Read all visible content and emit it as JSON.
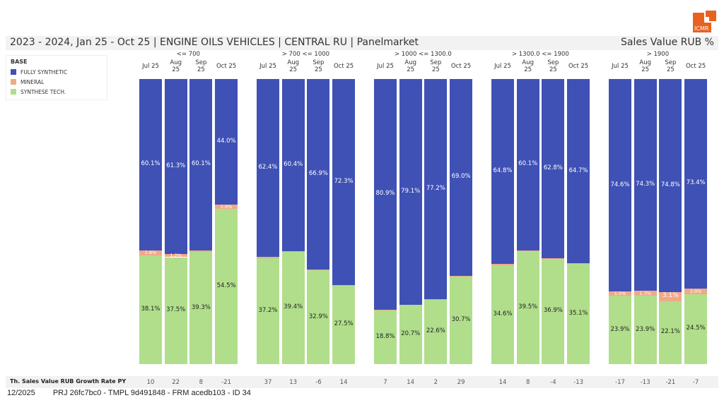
{
  "header": {
    "title": "2023 - 2024, Jan 25 - Oct 25 | ENGINE OILS VEHICLES | CENTRAL RU | Panelmarket",
    "measure": "Sales Value RUB %",
    "logo_text": "ICMR"
  },
  "colors": {
    "fully_synthetic": "#3f51b5",
    "mineral": "#f0a988",
    "synthese_tech": "#b0de8b",
    "logo": "#e8621f"
  },
  "chart_data": {
    "type": "bar",
    "stacked": true,
    "normalized": true,
    "ylim": [
      0,
      100
    ],
    "legend": {
      "title": "BASE",
      "placement": "top-left",
      "entries": [
        "FULLY SYNTHETIC",
        "MINERAL",
        "SYNTHESE TECH."
      ]
    },
    "months": [
      [
        "Jul 25"
      ],
      [
        "Aug",
        "25"
      ],
      [
        "Sep",
        "25"
      ],
      [
        "Oct 25"
      ]
    ],
    "groups": [
      {
        "name": "<= 700",
        "fully_synthetic": [
          60.1,
          61.3,
          60.1,
          44.0
        ],
        "mineral": [
          1.8,
          1.2,
          0.6,
          1.6
        ],
        "synthese_tech": [
          38.1,
          37.5,
          39.3,
          54.5
        ],
        "growth": [
          "10",
          "22",
          "8",
          "-21"
        ]
      },
      {
        "name": "> 700 <= 1000",
        "fully_synthetic": [
          62.4,
          60.4,
          66.9,
          72.3
        ],
        "mineral": [
          0.4,
          0.2,
          0.2,
          0.2
        ],
        "synthese_tech": [
          37.2,
          39.4,
          32.9,
          27.5
        ],
        "growth": [
          "37",
          "13",
          "-6",
          "14"
        ]
      },
      {
        "name": "> 1000 <= 1300.0",
        "fully_synthetic": [
          80.9,
          79.1,
          77.2,
          69.0
        ],
        "mineral": [
          0.3,
          0.2,
          0.2,
          0.3
        ],
        "synthese_tech": [
          18.8,
          20.7,
          22.6,
          30.7
        ],
        "growth": [
          "7",
          "14",
          "2",
          "29"
        ]
      },
      {
        "name": "> 1300.0 <= 1900",
        "fully_synthetic": [
          64.8,
          60.1,
          62.8,
          64.7
        ],
        "mineral": [
          0.6,
          0.4,
          0.3,
          0.2
        ],
        "synthese_tech": [
          34.6,
          39.5,
          36.9,
          35.1
        ],
        "growth": [
          "14",
          "8",
          "-4",
          "-13"
        ]
      },
      {
        "name": "> 1900",
        "fully_synthetic": [
          74.6,
          74.3,
          74.8,
          73.4
        ],
        "mineral": [
          1.5,
          1.7,
          3.1,
          2.0
        ],
        "synthese_tech": [
          23.9,
          23.9,
          22.1,
          24.5
        ],
        "growth": [
          "-17",
          "-13",
          "-21",
          "-7"
        ]
      }
    ],
    "growth_row_label": "Th. Sales Value RUB Growth Rate PY"
  },
  "footer": {
    "date": "12/2025",
    "ids": "PRJ 26fc7bc0 - TMPL 9d491848 - FRM acedb103 - ID 34"
  }
}
